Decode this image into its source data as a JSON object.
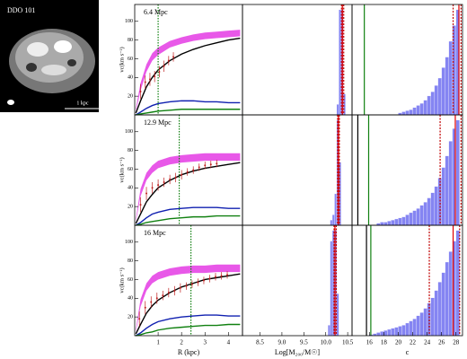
{
  "image_panel": {
    "label": "DDO 101",
    "scale_bar": "1 kpc"
  },
  "chart_data": [
    {
      "type": "line",
      "title": "6.4 Mpc",
      "ylabel": "vc(km s⁻¹)",
      "xlim": [
        0,
        4.6
      ],
      "ylim": [
        0,
        118
      ],
      "yticks": [
        20,
        40,
        60,
        80,
        100
      ],
      "x": [
        0.05,
        0.25,
        0.5,
        0.75,
        1,
        1.5,
        2,
        2.5,
        3,
        3.5,
        4,
        4.5
      ],
      "band": {
        "color": "#e020e0",
        "lower": [
          4,
          26,
          46,
          58,
          64,
          72,
          76,
          79,
          81,
          82,
          83,
          84
        ],
        "upper": [
          7,
          34,
          54,
          66,
          72,
          79,
          83,
          86,
          88,
          89,
          90,
          91
        ]
      },
      "series": [
        {
          "color": "#000000",
          "values": [
            2,
            15,
            30,
            40,
            48,
            58,
            65,
            70,
            74,
            77,
            80,
            82
          ]
        },
        {
          "color": "#1020b0",
          "values": [
            0,
            3,
            7,
            10,
            12,
            14,
            15,
            15,
            14,
            14,
            13,
            13
          ]
        },
        {
          "color": "#108010",
          "values": [
            0,
            1,
            2,
            3,
            4,
            5,
            6,
            6,
            6,
            6,
            6,
            6
          ]
        }
      ],
      "points": {
        "color": "#c02020",
        "x": [
          0.25,
          0.45,
          0.65,
          0.85,
          1.05,
          1.25,
          1.45,
          1.65
        ],
        "values": [
          25,
          35,
          38,
          41,
          46,
          52,
          58,
          62
        ],
        "errors": [
          8,
          7,
          7,
          6,
          6,
          6,
          5,
          5
        ]
      },
      "vline": {
        "value": 1.0,
        "color": "#108010"
      }
    },
    {
      "type": "histogram",
      "xlim": [
        8.1,
        10.6
      ],
      "ylim": [
        0,
        105
      ],
      "color": "#7070f0",
      "bins": [
        10.25,
        10.3,
        10.35,
        10.4,
        10.45
      ],
      "counts": [
        10,
        100,
        100,
        20
      ],
      "lines": [
        {
          "value": 10.36,
          "color": "#c00000",
          "dash": true
        },
        {
          "value": 10.38,
          "color": "#e00000",
          "dash": false
        },
        {
          "value": 10.41,
          "color": "#c00000",
          "dash": true
        }
      ]
    },
    {
      "type": "histogram",
      "xlim": [
        13.6,
        28.9
      ],
      "ylim": [
        0,
        105
      ],
      "color": "#7070f0",
      "bins": [
        20,
        20.5,
        21,
        21.5,
        22,
        22.5,
        23,
        23.5,
        24,
        24.5,
        25,
        25.5,
        26,
        26.5,
        27,
        27.5,
        28,
        28.5
      ],
      "counts": [
        2,
        3,
        4,
        5,
        7,
        9,
        11,
        14,
        18,
        22,
        28,
        35,
        45,
        55,
        70,
        85,
        100
      ],
      "lines": [
        {
          "value": 15.3,
          "color": "#108010",
          "dash": false
        },
        {
          "value": 27.6,
          "color": "#c00000",
          "dash": true
        },
        {
          "value": 28.4,
          "color": "#e00000",
          "dash": false
        },
        {
          "value": 28.7,
          "color": "#c00000",
          "dash": true
        }
      ]
    },
    {
      "type": "line",
      "title": "12.9 Mpc",
      "ylabel": "vc(km s⁻¹)",
      "xlim": [
        0,
        4.6
      ],
      "ylim": [
        0,
        118
      ],
      "yticks": [
        20,
        40,
        60,
        80,
        100
      ],
      "x": [
        0.05,
        0.25,
        0.5,
        0.75,
        1,
        1.5,
        2,
        2.5,
        3,
        3.5,
        4,
        4.5
      ],
      "band": {
        "color": "#e020e0",
        "lower": [
          4,
          31,
          48,
          56,
          61,
          65,
          67,
          68,
          69,
          69,
          69,
          69
        ],
        "upper": [
          7,
          39,
          56,
          64,
          69,
          73,
          75,
          76,
          77,
          77,
          77,
          77
        ]
      },
      "series": [
        {
          "color": "#000000",
          "values": [
            2,
            12,
            25,
            33,
            40,
            48,
            54,
            58,
            61,
            63,
            65,
            67
          ]
        },
        {
          "color": "#1020b0",
          "values": [
            0,
            3,
            8,
            12,
            14,
            17,
            18,
            19,
            19,
            19,
            18,
            18
          ]
        },
        {
          "color": "#108010",
          "values": [
            0,
            1,
            3,
            4,
            5,
            7,
            8,
            9,
            9,
            10,
            10,
            10
          ]
        }
      ],
      "points": {
        "color": "#c02020",
        "x": [
          0.25,
          0.5,
          0.75,
          1,
          1.25,
          1.5,
          1.75,
          2,
          2.25,
          2.5,
          2.75,
          3,
          3.25,
          3.5
        ],
        "values": [
          22,
          34,
          40,
          43,
          46,
          49,
          51,
          54,
          57,
          59,
          62,
          64,
          65,
          66
        ],
        "errors": [
          8,
          7,
          6,
          6,
          5,
          5,
          5,
          5,
          4,
          4,
          4,
          4,
          4,
          4
        ]
      },
      "vline": {
        "value": 1.9,
        "color": "#108010"
      }
    },
    {
      "type": "histogram",
      "xlim": [
        8.1,
        10.6
      ],
      "ylim": [
        0,
        105
      ],
      "color": "#7070f0",
      "bins": [
        10.1,
        10.15,
        10.2,
        10.25,
        10.3,
        10.35
      ],
      "counts": [
        5,
        10,
        30,
        100,
        60
      ],
      "lines": [
        {
          "value": 10.27,
          "color": "#c00000",
          "dash": true
        },
        {
          "value": 10.29,
          "color": "#e00000",
          "dash": false
        },
        {
          "value": 10.31,
          "color": "#c00000",
          "dash": true
        }
      ]
    },
    {
      "type": "histogram",
      "xlim": [
        13.6,
        28.9
      ],
      "ylim": [
        0,
        105
      ],
      "color": "#7070f0",
      "bins": [
        17,
        17.5,
        18,
        18.5,
        19,
        19.5,
        20,
        20.5,
        21,
        21.5,
        22,
        22.5,
        23,
        23.5,
        24,
        24.5,
        25,
        25.5,
        26,
        26.5,
        27,
        27.5,
        28,
        28.5
      ],
      "counts": [
        2,
        3,
        3,
        4,
        5,
        6,
        7,
        8,
        10,
        12,
        14,
        16,
        19,
        22,
        26,
        31,
        37,
        45,
        55,
        66,
        80,
        92,
        100
      ],
      "lines": [
        {
          "value": 14.4,
          "color": "#000000",
          "dash": false
        },
        {
          "value": 15.9,
          "color": "#108010",
          "dash": false
        },
        {
          "value": 25.8,
          "color": "#c00000",
          "dash": true
        },
        {
          "value": 27.9,
          "color": "#e00000",
          "dash": false
        },
        {
          "value": 28.7,
          "color": "#c00000",
          "dash": true
        }
      ]
    },
    {
      "type": "line",
      "title": "16 Mpc",
      "ylabel": "vc(km s⁻¹)",
      "xlabel": "R (kpc)",
      "xlim": [
        0,
        4.6
      ],
      "ylim": [
        0,
        118
      ],
      "xticks": [
        1,
        2,
        3,
        4
      ],
      "yticks": [
        20,
        40,
        60,
        80,
        100
      ],
      "x": [
        0.05,
        0.25,
        0.5,
        0.75,
        1,
        1.5,
        2,
        2.5,
        3,
        3.5,
        4,
        4.5
      ],
      "band": {
        "color": "#e020e0",
        "lower": [
          4,
          31,
          48,
          56,
          60,
          64,
          66,
          67,
          67,
          68,
          68,
          68
        ],
        "upper": [
          7,
          39,
          56,
          64,
          68,
          72,
          74,
          75,
          75,
          76,
          76,
          76
        ]
      },
      "series": [
        {
          "color": "#000000",
          "values": [
            2,
            12,
            24,
            32,
            38,
            46,
            52,
            56,
            60,
            62,
            64,
            66
          ]
        },
        {
          "color": "#1020b0",
          "values": [
            0,
            3,
            8,
            12,
            15,
            18,
            20,
            21,
            22,
            22,
            21,
            21
          ]
        },
        {
          "color": "#108010",
          "values": [
            0,
            1,
            3,
            4,
            6,
            8,
            9,
            10,
            11,
            11,
            12,
            12
          ]
        }
      ],
      "points": {
        "color": "#c02020",
        "x": [
          0.2,
          0.45,
          0.7,
          0.95,
          1.2,
          1.45,
          1.7,
          1.95,
          2.2,
          2.45,
          2.7,
          2.95,
          3.2,
          3.45,
          3.7,
          3.95
        ],
        "values": [
          18,
          30,
          36,
          40,
          43,
          46,
          48,
          51,
          53,
          55,
          57,
          59,
          61,
          63,
          64,
          65
        ],
        "errors": [
          8,
          7,
          6,
          6,
          5,
          5,
          5,
          5,
          4,
          4,
          4,
          4,
          4,
          4,
          4,
          4
        ]
      },
      "vline": {
        "value": 2.4,
        "color": "#108010"
      }
    },
    {
      "type": "histogram",
      "xlabel": "Log[M₂₀₀/M☉]",
      "xlim": [
        8.1,
        10.6
      ],
      "ylim": [
        0,
        105
      ],
      "color": "#7070f0",
      "xticks": [
        8.5,
        {
          "value": 9.0,
          "label": "9.0"
        },
        9.5,
        {
          "value": 10.0,
          "label": "10.0"
        },
        10.5
      ],
      "bins": [
        10.05,
        10.1,
        10.15,
        10.2,
        10.25,
        10.3
      ],
      "counts": [
        10,
        90,
        100,
        100,
        40
      ],
      "lines": [
        {
          "value": 10.19,
          "color": "#c00000",
          "dash": true
        },
        {
          "value": 10.21,
          "color": "#e00000",
          "dash": false
        },
        {
          "value": 10.24,
          "color": "#c00000",
          "dash": true
        }
      ]
    },
    {
      "type": "histogram",
      "xlabel": "c",
      "xlim": [
        13.6,
        28.9
      ],
      "ylim": [
        0,
        105
      ],
      "color": "#7070f0",
      "xticks": [
        16,
        18,
        20,
        22,
        24,
        26,
        28
      ],
      "bins": [
        16,
        16.5,
        17,
        17.5,
        18,
        18.5,
        19,
        19.5,
        20,
        20.5,
        21,
        21.5,
        22,
        22.5,
        23,
        23.5,
        24,
        24.5,
        25,
        25.5,
        26,
        26.5,
        27,
        27.5,
        28,
        28.5
      ],
      "counts": [
        1,
        2,
        3,
        4,
        5,
        6,
        7,
        8,
        9,
        10,
        12,
        14,
        16,
        19,
        22,
        26,
        31,
        36,
        43,
        51,
        60,
        70,
        80,
        90,
        100
      ],
      "lines": [
        {
          "value": 15.6,
          "color": "#000000",
          "dash": false
        },
        {
          "value": 16.2,
          "color": "#108010",
          "dash": false
        },
        {
          "value": 24.3,
          "color": "#c00000",
          "dash": true
        },
        {
          "value": 27.6,
          "color": "#e00000",
          "dash": false
        },
        {
          "value": 28.5,
          "color": "#c00000",
          "dash": true
        }
      ]
    }
  ]
}
